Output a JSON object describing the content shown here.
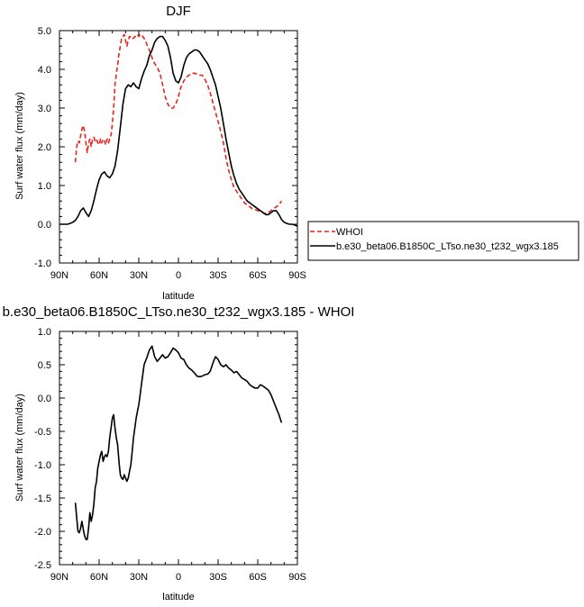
{
  "chart_data": [
    {
      "type": "line",
      "title": "DJF",
      "xlabel": "latitude",
      "ylabel": "Surf water flux (mm/day)",
      "xlim": [
        90,
        -90
      ],
      "ylim": [
        -1.0,
        5.0
      ],
      "xticks": [
        90,
        60,
        30,
        0,
        -30,
        -60,
        -90
      ],
      "xtick_labels": [
        "90N",
        "60N",
        "30N",
        "0",
        "30S",
        "60S",
        "90S"
      ],
      "yticks": [
        -1.0,
        0.0,
        1.0,
        2.0,
        3.0,
        4.0,
        5.0
      ],
      "ytick_labels": [
        "-1.0",
        "0.0",
        "1.0",
        "2.0",
        "3.0",
        "4.0",
        "5.0"
      ],
      "legend_position": "right",
      "series": [
        {
          "name": "WHOI",
          "style": "dashed",
          "color": "#e8231c",
          "x": [
            78,
            77,
            76,
            75,
            74,
            73,
            72,
            71,
            70,
            69,
            68,
            67,
            66,
            65,
            64,
            63,
            62,
            61,
            60,
            59,
            58,
            57,
            56,
            55,
            54,
            53,
            52,
            51,
            50,
            49,
            48,
            47,
            46,
            45,
            44,
            43,
            42,
            41,
            40,
            39,
            38,
            37,
            36,
            35,
            34,
            33,
            32,
            31,
            30,
            29,
            28,
            27,
            26,
            25,
            24,
            22,
            20,
            18,
            16,
            14,
            12,
            10,
            8,
            6,
            4,
            2,
            0,
            -2,
            -4,
            -6,
            -8,
            -10,
            -12,
            -14,
            -16,
            -18,
            -20,
            -22,
            -24,
            -26,
            -28,
            -30,
            -32,
            -34,
            -36,
            -38,
            -40,
            -42,
            -44,
            -46,
            -48,
            -50,
            -52,
            -54,
            -56,
            -58,
            -60,
            -62,
            -64,
            -66,
            -68,
            -70,
            -72,
            -74,
            -76,
            -78
          ],
          "y": [
            1.6,
            2.0,
            2.15,
            2.1,
            2.3,
            2.45,
            2.55,
            2.4,
            2.1,
            1.85,
            2.1,
            2.2,
            2.0,
            2.2,
            2.25,
            2.15,
            2.2,
            2.1,
            2.05,
            2.2,
            2.1,
            2.2,
            2.15,
            2.05,
            2.2,
            2.1,
            2.2,
            2.3,
            2.6,
            3.0,
            3.6,
            3.9,
            4.1,
            4.4,
            4.6,
            4.8,
            4.85,
            4.9,
            4.75,
            4.6,
            4.75,
            4.85,
            4.82,
            4.78,
            4.8,
            4.85,
            4.85,
            4.9,
            4.85,
            4.9,
            4.9,
            4.85,
            4.8,
            4.75,
            4.65,
            4.5,
            4.3,
            4.15,
            4.05,
            3.9,
            3.6,
            3.3,
            3.1,
            3.0,
            3.0,
            3.1,
            3.3,
            3.55,
            3.7,
            3.8,
            3.85,
            3.9,
            3.9,
            3.88,
            3.85,
            3.85,
            3.75,
            3.6,
            3.4,
            3.15,
            2.9,
            2.65,
            2.4,
            2.1,
            1.7,
            1.4,
            1.15,
            0.95,
            0.85,
            0.75,
            0.65,
            0.55,
            0.5,
            0.45,
            0.4,
            0.38,
            0.35,
            0.32,
            0.3,
            0.28,
            0.3,
            0.35,
            0.4,
            0.45,
            0.5,
            0.6
          ]
        },
        {
          "name": "b.e30_beta06.B1850C_LTso.ne30_t232_wgx3.185",
          "style": "solid",
          "color": "#000000",
          "x": [
            90,
            88,
            86,
            84,
            82,
            80,
            78,
            76,
            74,
            72,
            70,
            68,
            66,
            64,
            62,
            60,
            58,
            56,
            54,
            52,
            50,
            48,
            46,
            44,
            42,
            40,
            38,
            36,
            34,
            32,
            30,
            28,
            26,
            24,
            22,
            20,
            18,
            16,
            14,
            12,
            10,
            8,
            6,
            4,
            2,
            0,
            -2,
            -4,
            -6,
            -8,
            -10,
            -12,
            -14,
            -16,
            -18,
            -20,
            -22,
            -24,
            -26,
            -28,
            -30,
            -32,
            -34,
            -36,
            -38,
            -40,
            -42,
            -44,
            -46,
            -48,
            -50,
            -52,
            -54,
            -56,
            -58,
            -60,
            -62,
            -64,
            -66,
            -68,
            -70,
            -72,
            -74,
            -76,
            -78,
            -80,
            -82,
            -84,
            -86,
            -88,
            -90
          ],
          "y": [
            0.0,
            0.0,
            0.0,
            0.0,
            0.02,
            0.05,
            0.1,
            0.2,
            0.35,
            0.42,
            0.3,
            0.2,
            0.35,
            0.6,
            0.9,
            1.15,
            1.3,
            1.35,
            1.25,
            1.2,
            1.3,
            1.5,
            1.9,
            2.5,
            3.1,
            3.5,
            3.6,
            3.55,
            3.65,
            3.55,
            3.5,
            3.75,
            3.95,
            4.1,
            4.35,
            4.5,
            4.7,
            4.8,
            4.85,
            4.85,
            4.75,
            4.6,
            4.3,
            3.9,
            3.7,
            3.65,
            3.8,
            4.1,
            4.3,
            4.4,
            4.45,
            4.5,
            4.5,
            4.45,
            4.35,
            4.25,
            4.15,
            4.0,
            3.8,
            3.6,
            3.3,
            3.0,
            2.6,
            2.2,
            1.85,
            1.5,
            1.25,
            1.05,
            0.9,
            0.8,
            0.7,
            0.6,
            0.55,
            0.5,
            0.45,
            0.4,
            0.35,
            0.3,
            0.25,
            0.25,
            0.3,
            0.35,
            0.35,
            0.25,
            0.12,
            0.05,
            0.02,
            0.0,
            0.0,
            -0.02,
            -0.05
          ]
        }
      ]
    },
    {
      "type": "line",
      "title": "b.e30_beta06.B1850C_LTso.ne30_t232_wgx3.185 - WHOI",
      "xlabel": "latitude",
      "ylabel": "Surf water flux (mm/day)",
      "xlim": [
        90,
        -90
      ],
      "ylim": [
        -2.5,
        1.0
      ],
      "xticks": [
        90,
        60,
        30,
        0,
        -30,
        -60,
        -90
      ],
      "xtick_labels": [
        "90N",
        "60N",
        "30N",
        "0",
        "30S",
        "60S",
        "90S"
      ],
      "yticks": [
        -2.5,
        -2.0,
        -1.5,
        -1.0,
        -0.5,
        0.0,
        0.5,
        1.0
      ],
      "ytick_labels": [
        "-2.5",
        "-2.0",
        "-1.5",
        "-1.0",
        "-0.5",
        "0.0",
        "0.5",
        "1.0"
      ],
      "series": [
        {
          "style": "solid",
          "color": "#000000",
          "x": [
            78,
            76,
            75,
            74,
            73,
            72,
            71,
            70,
            69,
            68,
            67,
            66,
            65,
            64,
            63,
            62,
            61,
            60,
            59,
            58,
            57,
            56,
            55,
            54,
            53,
            52,
            51,
            50,
            49,
            48,
            47,
            46,
            45,
            44,
            43,
            42,
            41,
            40,
            39,
            38,
            37,
            36,
            35,
            34,
            33,
            32,
            31,
            30,
            29,
            28,
            27,
            26,
            25,
            24,
            22,
            20,
            18,
            16,
            14,
            12,
            10,
            8,
            6,
            4,
            2,
            0,
            -2,
            -4,
            -6,
            -8,
            -10,
            -12,
            -14,
            -16,
            -18,
            -20,
            -22,
            -24,
            -26,
            -28,
            -30,
            -32,
            -34,
            -36,
            -38,
            -40,
            -42,
            -44,
            -46,
            -48,
            -50,
            -52,
            -54,
            -56,
            -58,
            -60,
            -62,
            -64,
            -66,
            -68,
            -70,
            -72,
            -74,
            -76,
            -78
          ],
          "y": [
            -1.57,
            -2.0,
            -2.02,
            -1.95,
            -1.85,
            -1.97,
            -2.07,
            -2.12,
            -2.12,
            -1.95,
            -1.72,
            -1.85,
            -1.75,
            -1.6,
            -1.35,
            -1.25,
            -1.05,
            -0.95,
            -0.85,
            -0.8,
            -0.95,
            -0.88,
            -0.85,
            -0.88,
            -0.8,
            -0.6,
            -0.45,
            -0.3,
            -0.25,
            -0.45,
            -0.6,
            -0.7,
            -0.95,
            -1.15,
            -1.2,
            -1.22,
            -1.15,
            -1.2,
            -1.25,
            -1.2,
            -1.1,
            -1.0,
            -0.8,
            -0.6,
            -0.45,
            -0.3,
            -0.2,
            -0.1,
            0.05,
            0.2,
            0.35,
            0.5,
            0.55,
            0.6,
            0.72,
            0.78,
            0.62,
            0.55,
            0.6,
            0.65,
            0.6,
            0.62,
            0.68,
            0.75,
            0.72,
            0.68,
            0.6,
            0.58,
            0.5,
            0.45,
            0.42,
            0.38,
            0.33,
            0.32,
            0.33,
            0.35,
            0.36,
            0.4,
            0.52,
            0.62,
            0.58,
            0.5,
            0.47,
            0.5,
            0.45,
            0.42,
            0.38,
            0.4,
            0.35,
            0.3,
            0.28,
            0.25,
            0.2,
            0.17,
            0.15,
            0.15,
            0.2,
            0.18,
            0.15,
            0.12,
            0.05,
            -0.05,
            -0.15,
            -0.25,
            -0.37
          ]
        }
      ]
    }
  ]
}
